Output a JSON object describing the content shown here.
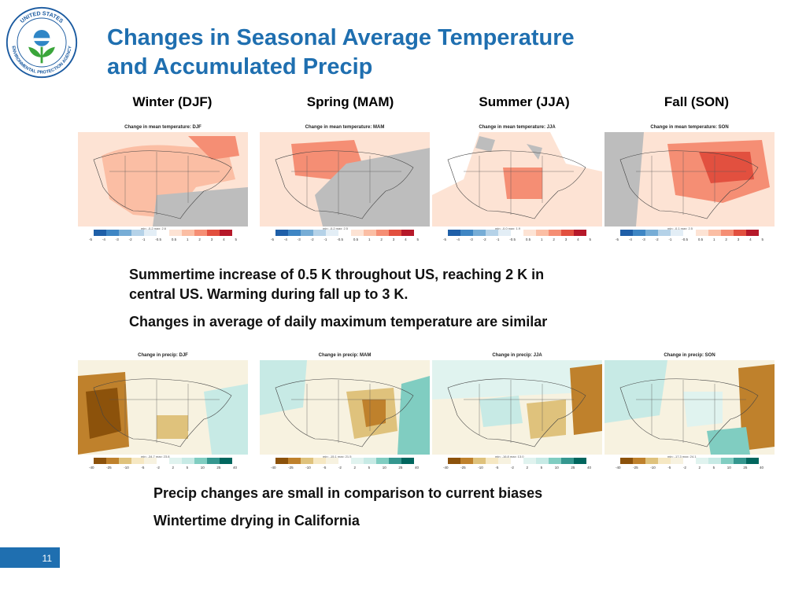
{
  "logo": {
    "ring_text_top": "UNITED STATES",
    "ring_text_bottom": "ENVIRONMENTAL PROTECTION AGENCY",
    "colors": {
      "ring": "#1a5aa0",
      "flower_green": "#3aa53a",
      "sky_blue": "#2f86c6"
    }
  },
  "slide": {
    "title_line1": "Changes in Seasonal Average Temperature",
    "title_line2": "and Accumulated Precip",
    "page_number": "11",
    "accent_color": "#1f6fb0"
  },
  "seasons": [
    {
      "label": "Winter (DJF)"
    },
    {
      "label": "Spring (MAM)"
    },
    {
      "label": "Summer (JJA)"
    },
    {
      "label": "Fall (SON)"
    }
  ],
  "temperature_panels": [
    {
      "title": "Change in mean temperature: DJF",
      "minmax": "min: -0.2 max: 2.6"
    },
    {
      "title": "Change in mean temperature: MAM",
      "minmax": "min: -0.2 max: 2.5"
    },
    {
      "title": "Change in mean temperature: JJA",
      "minmax": "min: -0.0 max: 1.9"
    },
    {
      "title": "Change in mean temperature: SON",
      "minmax": "min: -0.1 max: 2.5"
    }
  ],
  "temperature_colorbar": {
    "colors": [
      "#1f5fa8",
      "#3f86c4",
      "#77add6",
      "#b5d2e8",
      "#e3eef6",
      "#ffffff",
      "#fde3d4",
      "#fbbea4",
      "#f58e74",
      "#e2503f",
      "#b6192a"
    ],
    "ticks": [
      "-5",
      "-4",
      "-3",
      "-2",
      "-1",
      "-0.5",
      "0.5",
      "1",
      "2",
      "3",
      "4",
      "5"
    ]
  },
  "temperature_text": {
    "line1": "Summertime increase of 0.5 K throughout US, reaching 2 K in",
    "line2": "central US.  Warming during fall up to 3 K.",
    "line3": "Changes in average of daily maximum temperature are similar"
  },
  "precip_panels": [
    {
      "title": "Change in precip: DJF",
      "minmax": "min: -34.7 max: 23.8"
    },
    {
      "title": "Change in precip: MAM",
      "minmax": "min: -15.1 max: 21.5"
    },
    {
      "title": "Change in precip: JJA",
      "minmax": "min: -16.8 max: 13.0"
    },
    {
      "title": "Change in precip: SON",
      "minmax": "min: -17.3 max: 24.1"
    }
  ],
  "precip_colorbar": {
    "colors": [
      "#8c520b",
      "#bf812c",
      "#dfc27c",
      "#f6e8c3",
      "#f7f2e0",
      "#ffffff",
      "#e0f3ef",
      "#c7eae5",
      "#80cdc1",
      "#35978f",
      "#01665e"
    ],
    "ticks": [
      "-40",
      "-25",
      "-10",
      "-5",
      "-2",
      "2",
      "5",
      "10",
      "25",
      "40"
    ]
  },
  "precip_text": {
    "line1": "Precip changes are small in comparison to current biases",
    "line2": "Wintertime drying in California"
  }
}
